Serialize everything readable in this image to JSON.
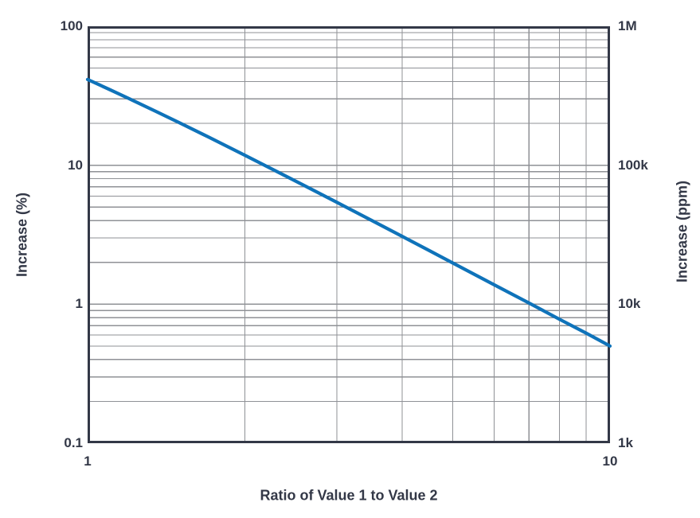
{
  "chart_data": {
    "type": "line",
    "title": "",
    "xlabel": "Ratio of Value 1 to Value 2",
    "ylabel_left": "Increase (%)",
    "ylabel_right": "Increase (ppm)",
    "x_scale": "log",
    "y_scale": "log",
    "xlim": [
      1,
      10
    ],
    "ylim_left": [
      0.1,
      100
    ],
    "ylim_right": [
      1000,
      1000000
    ],
    "grid": "log minor gridlines on both axes",
    "legend": "none",
    "x_ticks": [
      {
        "value": 1,
        "label": "1"
      },
      {
        "value": 10,
        "label": "10"
      }
    ],
    "y_ticks_left": [
      {
        "value": 100,
        "label": "100"
      },
      {
        "value": 10,
        "label": "10"
      },
      {
        "value": 1,
        "label": "1"
      },
      {
        "value": 0.1,
        "label": "0.1"
      }
    ],
    "y_ticks_right": [
      {
        "value": 1000000,
        "label": "1M"
      },
      {
        "value": 100000,
        "label": "100k"
      },
      {
        "value": 10000,
        "label": "10k"
      },
      {
        "value": 1000,
        "label": "1k"
      }
    ],
    "colors": {
      "line": "#0F73BA",
      "grid": "#8F9196",
      "axis": "#333847",
      "text": "#333847",
      "background": "#FFFFFF"
    },
    "series": [
      {
        "name": "Increase",
        "color": "#0F73BA",
        "x": [
          1,
          1.1,
          1.2,
          1.35,
          1.5,
          1.7,
          2,
          2.3,
          2.6,
          3,
          3.5,
          4,
          4.5,
          5,
          6,
          7,
          8,
          9,
          10
        ],
        "y_percent": [
          41.42,
          35.15,
          30.17,
          24.44,
          20.19,
          16.02,
          11.8,
          9.04,
          7.14,
          5.41,
          4.0,
          3.08,
          2.44,
          1.98,
          1.38,
          1.02,
          0.78,
          0.62,
          0.5
        ],
        "y_ppm": [
          414200,
          351500,
          301700,
          244400,
          201900,
          160200,
          118000,
          90400,
          71400,
          54100,
          40000,
          30800,
          24400,
          19800,
          13800,
          10200,
          7800,
          6200,
          5000
        ]
      }
    ]
  }
}
